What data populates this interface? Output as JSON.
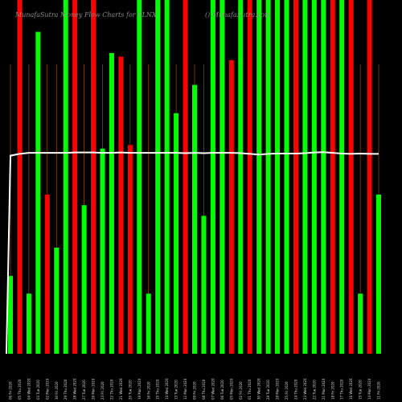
{
  "chart_data": {
    "type": "bar",
    "title_left": "MunafaSutra  Money Flow  Charts for SLNX",
    "title_right": "() MunafaSutra.com",
    "y_max": 100,
    "colors": {
      "up": "#00ff00",
      "down": "#ff0000",
      "line": "#ffffff",
      "background": "#000000",
      "divider": "#b35a00"
    },
    "bars": [
      {
        "label": "06 Fri 2020",
        "value": 22,
        "color": "up"
      },
      {
        "label": "05 Thu 2020",
        "value": 100,
        "color": "down"
      },
      {
        "label": "04 Wed 2020",
        "value": 17,
        "color": "up"
      },
      {
        "label": "03 Tue 2020",
        "value": 91,
        "color": "up"
      },
      {
        "label": "02 Mon 2020",
        "value": 45,
        "color": "down"
      },
      {
        "label": "30 Fri 2020",
        "value": 30,
        "color": "up"
      },
      {
        "label": "29 Thu 2020",
        "value": 100,
        "color": "up"
      },
      {
        "label": "28 Wed 2020",
        "value": 100,
        "color": "down"
      },
      {
        "label": "27 Tue 2020",
        "value": 42,
        "color": "up"
      },
      {
        "label": "26 Mon 2020",
        "value": 100,
        "color": "down"
      },
      {
        "label": "23 Fri 2020",
        "value": 58,
        "color": "up"
      },
      {
        "label": "22 Thu 2020",
        "value": 85,
        "color": "up"
      },
      {
        "label": "21 Wed 2020",
        "value": 84,
        "color": "down"
      },
      {
        "label": "20 Tue 2020",
        "value": 59,
        "color": "down"
      },
      {
        "label": "19 Mon 2020",
        "value": 100,
        "color": "up"
      },
      {
        "label": "16 Fri 2020",
        "value": 17,
        "color": "up"
      },
      {
        "label": "15 Thu 2020",
        "value": 100,
        "color": "up"
      },
      {
        "label": "14 Wed 2020",
        "value": 100,
        "color": "up"
      },
      {
        "label": "13 Tue 2020",
        "value": 68,
        "color": "up"
      },
      {
        "label": "12 Mon 2020",
        "value": 100,
        "color": "down"
      },
      {
        "label": "09 Fri 2020",
        "value": 76,
        "color": "up"
      },
      {
        "label": "08 Thu 2020",
        "value": 39,
        "color": "up"
      },
      {
        "label": "07 Wed 2020",
        "value": 100,
        "color": "up"
      },
      {
        "label": "06 Tue 2020",
        "value": 100,
        "color": "up"
      },
      {
        "label": "05 Mon 2020",
        "value": 83,
        "color": "down"
      },
      {
        "label": "02 Fri 2020",
        "value": 100,
        "color": "up"
      },
      {
        "label": "01 Thu 2020",
        "value": 100,
        "color": "down"
      },
      {
        "label": "30 Wed 2020",
        "value": 100,
        "color": "up"
      },
      {
        "label": "29 Tue 2020",
        "value": 100,
        "color": "up"
      },
      {
        "label": "28 Mon 2020",
        "value": 100,
        "color": "up"
      },
      {
        "label": "25 Fri 2020",
        "value": 100,
        "color": "up"
      },
      {
        "label": "24 Thu 2020",
        "value": 100,
        "color": "down"
      },
      {
        "label": "23 Wed 2020",
        "value": 100,
        "color": "up"
      },
      {
        "label": "22 Tue 2020",
        "value": 100,
        "color": "up"
      },
      {
        "label": "21 Mon 2020",
        "value": 100,
        "color": "up"
      },
      {
        "label": "18 Fri 2020",
        "value": 100,
        "color": "down"
      },
      {
        "label": "17 Thu 2020",
        "value": 100,
        "color": "up"
      },
      {
        "label": "16 Wed 2020",
        "value": 100,
        "color": "down"
      },
      {
        "label": "15 Tue 2020",
        "value": 17,
        "color": "up"
      },
      {
        "label": "14 Mon 2020",
        "value": 100,
        "color": "down"
      },
      {
        "label": "11 Fri 2020",
        "value": 45,
        "color": "up"
      }
    ],
    "line_values": [
      56,
      56.5,
      56.8,
      56.8,
      56.8,
      56.8,
      56.8,
      56.9,
      56.9,
      56.9,
      56.8,
      56.8,
      56.9,
      56.8,
      56.8,
      56.8,
      56.8,
      56.8,
      56.8,
      56.7,
      56.8,
      56.7,
      56.8,
      56.8,
      56.8,
      56.7,
      56.5,
      56.3,
      56.5,
      56.6,
      56.6,
      56.6,
      56.7,
      56.9,
      57,
      56.8,
      56.6,
      56.5,
      56.6,
      56.5,
      56.5
    ],
    "line_start": 0
  }
}
